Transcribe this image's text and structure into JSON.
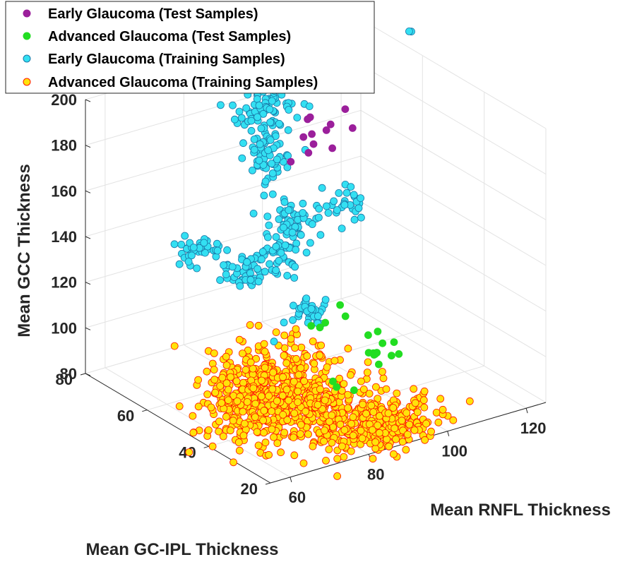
{
  "chart_data": {
    "type": "scatter3d",
    "xlabel": "Mean GC-IPL Thickness",
    "ylabel": "Mean RNFL Thickness",
    "zlabel": "Mean GCC Thickness",
    "x_ticks": [
      "20",
      "40",
      "60",
      "80"
    ],
    "y_ticks": [
      "60",
      "80",
      "100",
      "120"
    ],
    "z_ticks": [
      "80",
      "100",
      "120",
      "140",
      "160",
      "180",
      "200"
    ],
    "xlim": [
      20,
      80
    ],
    "ylim": [
      55,
      125
    ],
    "zlim": [
      80,
      200
    ],
    "grid": true,
    "legend_position": "top-left",
    "series": [
      {
        "name": "Early Glaucoma (Test Samples)",
        "face": "#9b1f9b",
        "edge": "#9b1f9b",
        "points": [
          [
            62,
            98,
            185
          ],
          [
            64,
            100,
            175
          ],
          [
            66,
            102,
            168
          ],
          [
            60,
            96,
            172
          ],
          [
            58,
            99,
            182
          ],
          [
            63,
            104,
            178
          ],
          [
            68,
            101,
            170
          ],
          [
            57,
            103,
            190
          ],
          [
            65,
            106,
            165
          ],
          [
            61,
            108,
            176
          ],
          [
            59,
            95,
            188
          ],
          [
            67,
            97,
            162
          ]
        ]
      },
      {
        "name": "Advanced Glaucoma (Test Samples)",
        "face": "#22dd22",
        "edge": "#22dd22",
        "points": [
          [
            44,
            100,
            95
          ],
          [
            46,
            102,
            92
          ],
          [
            48,
            104,
            90
          ],
          [
            45,
            106,
            96
          ],
          [
            43,
            98,
            97
          ],
          [
            47,
            101,
            100
          ],
          [
            42,
            103,
            94
          ],
          [
            49,
            105,
            98
          ],
          [
            41,
            99,
            93
          ],
          [
            50,
            107,
            91
          ],
          [
            40,
            97,
            99
          ],
          [
            46,
            108,
            89
          ],
          [
            55,
            95,
            100
          ],
          [
            54,
            92,
            103
          ],
          [
            52,
            94,
            105
          ],
          [
            48,
            96,
            110
          ],
          [
            38,
            85,
            95
          ],
          [
            35,
            88,
            92
          ],
          [
            33,
            82,
            98
          ],
          [
            51,
            97,
            112
          ]
        ]
      },
      {
        "name": "Early Glaucoma (Training Samples)",
        "face": "#33e0f2",
        "edge": "#1a78a8",
        "clusters": [
          {
            "c": [
              70,
              92,
              185
            ],
            "s": [
              3,
              3,
              5
            ],
            "n": 80
          },
          {
            "c": [
              65,
              90,
              170
            ],
            "s": [
              3,
              3,
              5
            ],
            "n": 60
          },
          {
            "c": [
              55,
              88,
              150
            ],
            "s": [
              3,
              3,
              4
            ],
            "n": 55
          },
          {
            "c": [
              52,
              82,
              140
            ],
            "s": [
              3,
              3,
              4
            ],
            "n": 50
          },
          {
            "c": [
              58,
              78,
              130
            ],
            "s": [
              2.5,
              2.5,
              3
            ],
            "n": 45
          },
          {
            "c": [
              62,
              70,
              140
            ],
            "s": [
              2,
              2,
              3
            ],
            "n": 40
          },
          {
            "c": [
              45,
              85,
              120
            ],
            "s": [
              2,
              2,
              3
            ],
            "n": 35
          },
          {
            "c": [
              60,
              105,
              145
            ],
            "s": [
              2,
              2,
              3
            ],
            "n": 30
          }
        ],
        "points": [
          [
            70,
            130,
            200
          ],
          [
            72,
            131,
            198
          ],
          [
            38,
            70,
            120
          ]
        ]
      },
      {
        "name": "Advanced Glaucoma (Training Samples)",
        "face": "#ffe30a",
        "edge": "#ff1a00",
        "clusters": [
          {
            "c": [
              35,
              72,
              100
            ],
            "s": [
              5,
              5,
              10
            ],
            "n": 280
          },
          {
            "c": [
              30,
              80,
              90
            ],
            "s": [
              5,
              5,
              8
            ],
            "n": 220
          },
          {
            "c": [
              40,
              68,
              95
            ],
            "s": [
              5,
              5,
              10
            ],
            "n": 200
          },
          {
            "c": [
              25,
              90,
              85
            ],
            "s": [
              3,
              6,
              4
            ],
            "n": 200
          },
          {
            "c": [
              38,
              60,
              100
            ],
            "s": [
              4,
              4,
              8
            ],
            "n": 120
          }
        ],
        "points": [
          [
            40,
            50,
            80
          ],
          [
            45,
            55,
            82
          ],
          [
            22,
            65,
            82
          ],
          [
            20,
            72,
            82
          ]
        ]
      }
    ]
  }
}
